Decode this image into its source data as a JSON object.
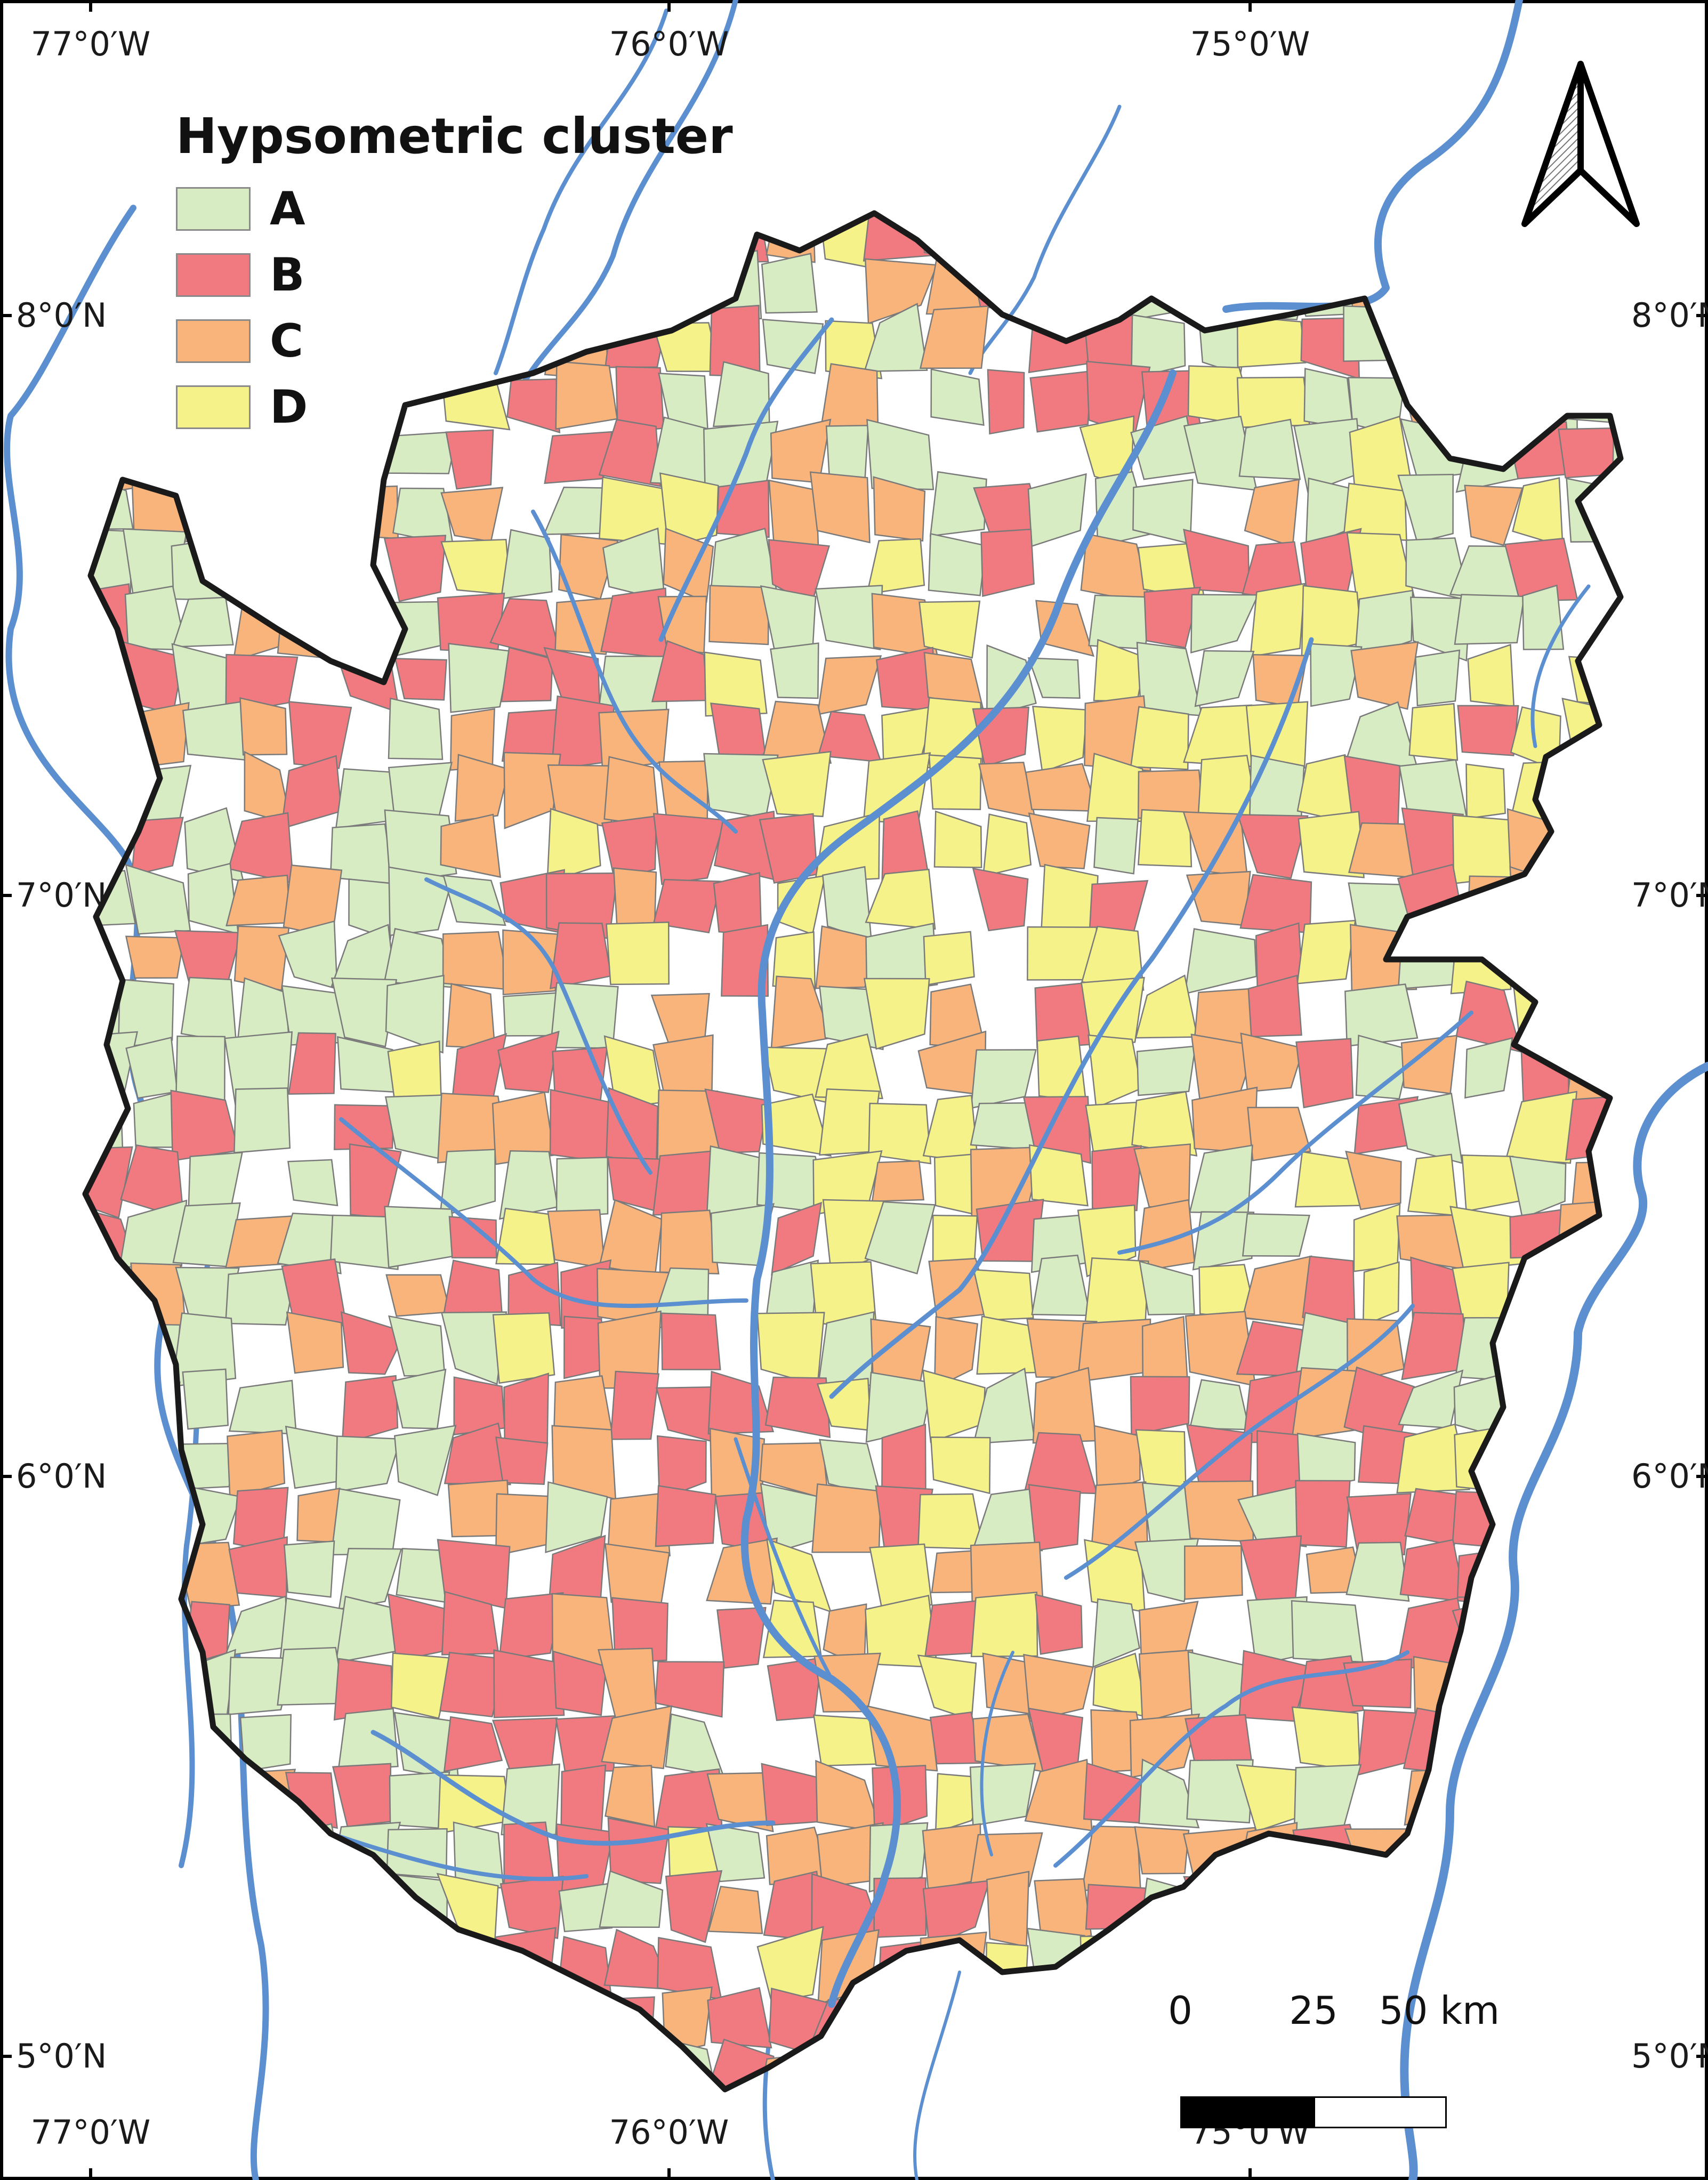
{
  "legend": {
    "title": "Hypsometric cluster",
    "items": [
      {
        "label": "A",
        "color": "#d8ecc4"
      },
      {
        "label": "B",
        "color": "#f07a80"
      },
      {
        "label": "C",
        "color": "#f8b47a"
      },
      {
        "label": "D",
        "color": "#f6f28a"
      }
    ]
  },
  "graticule": {
    "longitudes": [
      "77°0′W",
      "76°0′W",
      "75°0′W"
    ],
    "latitudes": [
      "8°0′N",
      "7°0′N",
      "6°0′N",
      "5°0′N"
    ]
  },
  "colors": {
    "river": "#5b8fd0",
    "boundary": "#1a1a1a",
    "subbasin_edge": "#7a7a7a",
    "background": "#ffffff"
  },
  "scale_bar": {
    "labels": [
      "0",
      "25",
      "50 km"
    ]
  },
  "north_arrow": {
    "icon": "north-arrow-icon"
  }
}
